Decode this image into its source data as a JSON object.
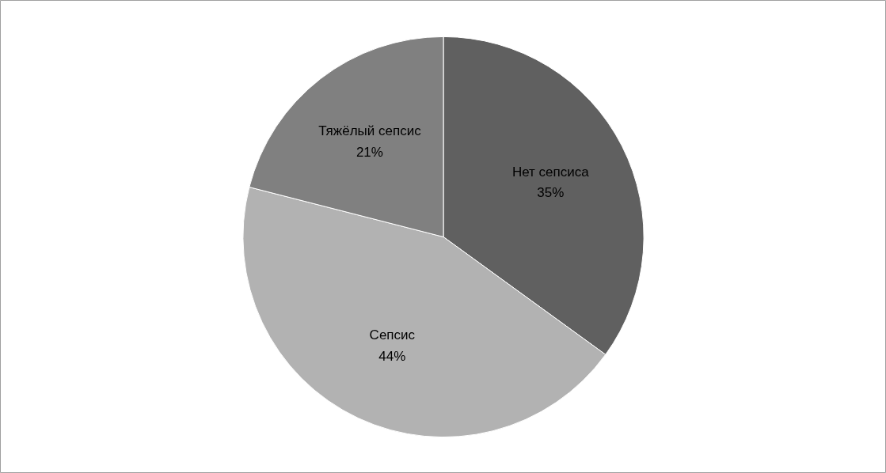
{
  "chart_data": {
    "type": "pie",
    "categories": [
      "Нет сепсиса",
      "Сепсис",
      "Тяжёлый сепсис"
    ],
    "values": [
      35,
      44,
      21
    ],
    "colors": [
      "#606060",
      "#b2b2b2",
      "#808080"
    ],
    "value_labels": [
      "35%",
      "44%",
      "21%"
    ]
  }
}
